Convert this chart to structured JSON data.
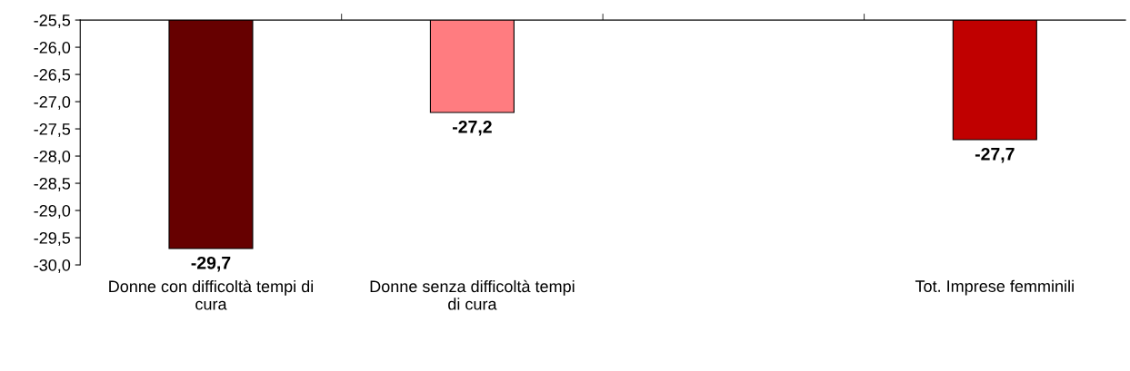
{
  "chart_data": {
    "type": "bar",
    "categories": [
      "Donne con difficoltà tempi di cura",
      "Donne senza difficoltà tempi di cura",
      null,
      "Tot. Imprese femminili"
    ],
    "values": [
      -29.7,
      -27.2,
      null,
      -27.7
    ],
    "colors": [
      "#660000",
      "#ff7c80",
      "#ffffff",
      "#c00000"
    ],
    "value_labels": [
      "-29,7",
      "-27,2",
      null,
      "-27,7"
    ],
    "ylim": [
      -30.0,
      -25.5
    ],
    "yticks": [
      {
        "value": -30.0,
        "label": "-30,0"
      },
      {
        "value": -29.5,
        "label": "-29,5"
      },
      {
        "value": -29.0,
        "label": "-29,0"
      },
      {
        "value": -28.5,
        "label": "-28,5"
      },
      {
        "value": -28.0,
        "label": "-28,0"
      },
      {
        "value": -27.5,
        "label": "-27,5"
      },
      {
        "value": -27.0,
        "label": "-27,0"
      },
      {
        "value": -26.5,
        "label": "-26,5"
      },
      {
        "value": -26.0,
        "label": "-26,0"
      },
      {
        "value": -25.5,
        "label": "-25,5"
      }
    ],
    "grid": false
  }
}
